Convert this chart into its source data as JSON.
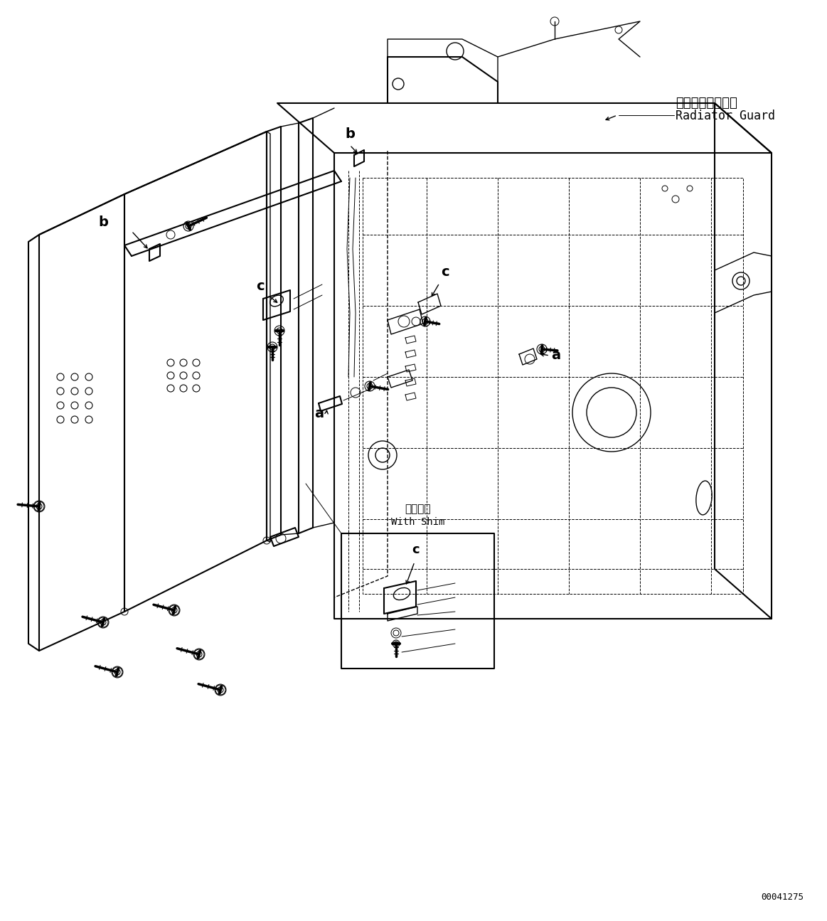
{
  "bg_color": "#ffffff",
  "fig_width": 11.63,
  "fig_height": 12.95,
  "dpi": 100,
  "label_radiator_guard_jp": "ラジエータガード",
  "label_radiator_guard_en": "Radiator Guard",
  "label_with_shim_jp": "シム付き",
  "label_with_shim_en": "With Shim",
  "label_a": "a",
  "label_b": "b",
  "label_c": "c",
  "part_number": "00041275"
}
